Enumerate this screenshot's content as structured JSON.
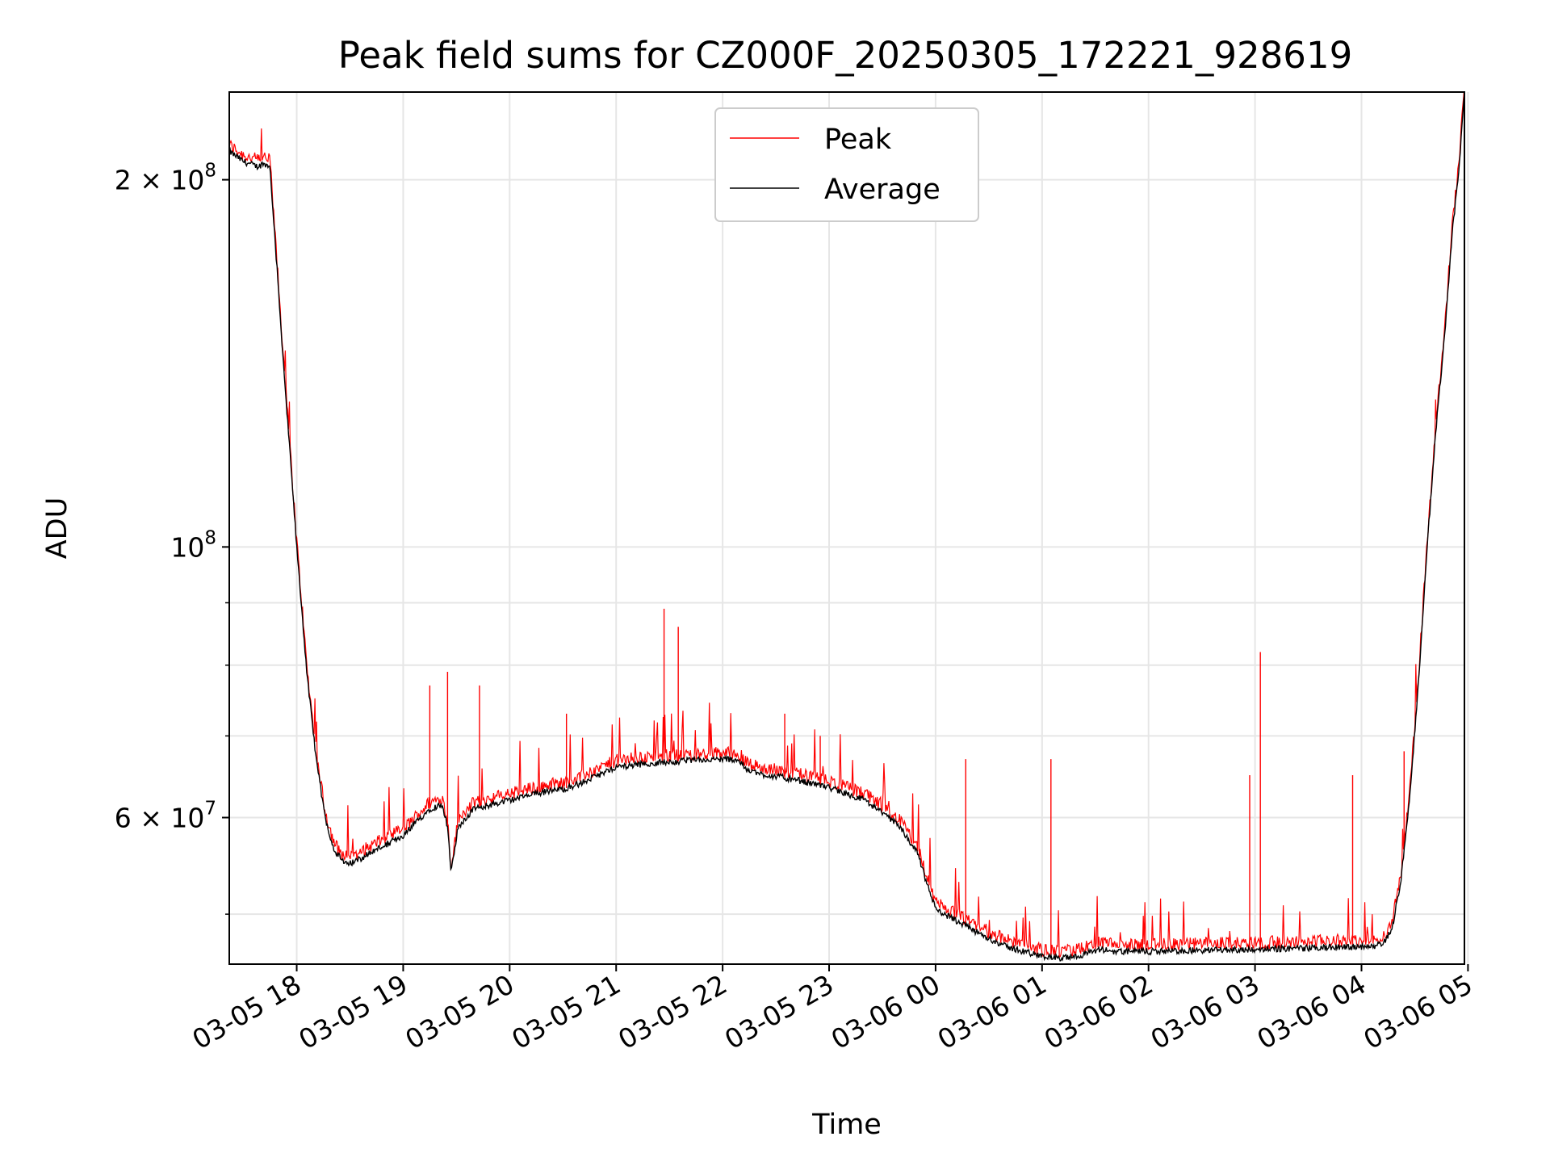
{
  "chart_data": {
    "type": "line",
    "title": "Peak field sums for CZ000F_20250305_172221_928619",
    "xlabel": "Time",
    "ylabel": "ADU",
    "yscale": "log",
    "ylim": [
      45500000,
      236000000
    ],
    "xlim": [
      "2025-03-05 17:22",
      "2025-03-06 04:58"
    ],
    "grid": true,
    "legend": "upper center",
    "x_ticks": [
      "03-05 18",
      "03-05 19",
      "03-05 20",
      "03-05 21",
      "03-05 22",
      "03-05 23",
      "03-06 00",
      "03-06 01",
      "03-06 02",
      "03-06 03",
      "03-06 04",
      "03-06 05"
    ],
    "y_ticks": [
      {
        "value": 200000000,
        "mantissa": "2",
        "times": "×",
        "base": "10",
        "exponent": "8"
      },
      {
        "value": 100000000,
        "mantissa": "",
        "times": "",
        "base": "10",
        "exponent": "8"
      },
      {
        "value": 60000000,
        "mantissa": "6",
        "times": "×",
        "base": "10",
        "exponent": "7"
      }
    ],
    "series": [
      {
        "name": "Average",
        "color": "#000000",
        "x": [
          "2025-03-05 17:22",
          "2025-03-05 17:30",
          "2025-03-05 17:38",
          "2025-03-05 17:41",
          "2025-03-05 17:45",
          "2025-03-05 17:52",
          "2025-03-05 18:00",
          "2025-03-05 18:06",
          "2025-03-05 18:11",
          "2025-03-05 18:16",
          "2025-03-05 18:21",
          "2025-03-05 18:27",
          "2025-03-05 18:33",
          "2025-03-05 18:40",
          "2025-03-05 18:50",
          "2025-03-05 19:00",
          "2025-03-05 19:10",
          "2025-03-05 19:15",
          "2025-03-05 19:22",
          "2025-03-05 19:25",
          "2025-03-05 19:27",
          "2025-03-05 19:31",
          "2025-03-05 19:40",
          "2025-03-05 20:00",
          "2025-03-05 20:20",
          "2025-03-05 20:30",
          "2025-03-05 20:40",
          "2025-03-05 21:00",
          "2025-03-05 21:20",
          "2025-03-05 21:40",
          "2025-03-05 22:00",
          "2025-03-05 22:08",
          "2025-03-05 22:12",
          "2025-03-05 22:20",
          "2025-03-05 22:40",
          "2025-03-05 23:00",
          "2025-03-05 23:20",
          "2025-03-05 23:40",
          "2025-03-05 23:50",
          "2025-03-05 23:55",
          "2025-03-06 00:00",
          "2025-03-06 00:20",
          "2025-03-06 00:40",
          "2025-03-06 01:00",
          "2025-03-06 01:10",
          "2025-03-06 01:20",
          "2025-03-06 01:33",
          "2025-03-06 01:40",
          "2025-03-06 02:00",
          "2025-03-06 02:30",
          "2025-03-06 03:00",
          "2025-03-06 03:30",
          "2025-03-06 03:55",
          "2025-03-06 04:05",
          "2025-03-06 04:12",
          "2025-03-06 04:17",
          "2025-03-06 04:22",
          "2025-03-06 04:27",
          "2025-03-06 04:32",
          "2025-03-06 04:37",
          "2025-03-06 04:42",
          "2025-03-06 04:47",
          "2025-03-06 04:51",
          "2025-03-06 04:55",
          "2025-03-06 04:58"
        ],
        "values": [
          211000000,
          207000000,
          205000000,
          206000000,
          205000000,
          145000000,
          100000000,
          78000000,
          67000000,
          60000000,
          56500000,
          55000000,
          55200000,
          56000000,
          57000000,
          58000000,
          60000000,
          61000000,
          61500000,
          59000000,
          54000000,
          59000000,
          61000000,
          62000000,
          63000000,
          63300000,
          64000000,
          66000000,
          66500000,
          66800000,
          67000000,
          67000000,
          66000000,
          65200000,
          64500000,
          63500000,
          62000000,
          59000000,
          56000000,
          53000000,
          50500000,
          48600000,
          47000000,
          46200000,
          46000000,
          46200000,
          46800000,
          46600000,
          46600000,
          46700000,
          46800000,
          46900000,
          47000000,
          47000000,
          47300000,
          48500000,
          53000000,
          62000000,
          77000000,
          100000000,
          125000000,
          150000000,
          180000000,
          205000000,
          236000000
        ]
      },
      {
        "name": "Peak",
        "color": "#ff0000"
      }
    ]
  }
}
